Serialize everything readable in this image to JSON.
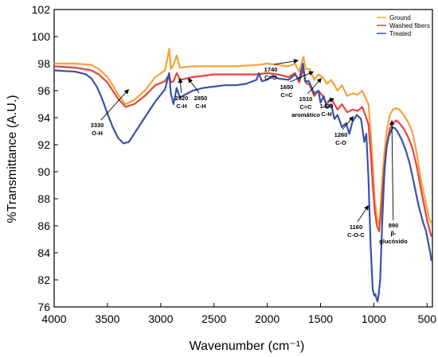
{
  "chart_data": {
    "type": "line",
    "xlabel": "Wavenumber (cm⁻¹)",
    "ylabel": "%Transmittance (A.U.)",
    "xlim": [
      4000,
      450
    ],
    "ylim": [
      76,
      102
    ],
    "x_ticks": [
      4000,
      3500,
      3000,
      2500,
      2000,
      1500,
      1000,
      500
    ],
    "y_ticks": [
      76,
      82,
      84,
      86,
      88,
      90,
      92,
      94,
      96,
      98,
      100,
      102
    ],
    "grid": false,
    "legend_position": "top-right",
    "series": [
      {
        "name": "Ground",
        "color": "#f4a23c",
        "points": [
          [
            4000,
            98.0
          ],
          [
            3800,
            98.0
          ],
          [
            3650,
            97.9
          ],
          [
            3580,
            97.6
          ],
          [
            3500,
            97.0
          ],
          [
            3450,
            96.4
          ],
          [
            3400,
            95.7
          ],
          [
            3330,
            95.0
          ],
          [
            3250,
            95.3
          ],
          [
            3150,
            96.0
          ],
          [
            3050,
            97.0
          ],
          [
            2960,
            97.5
          ],
          [
            2920,
            99.1
          ],
          [
            2905,
            97.6
          ],
          [
            2880,
            97.9
          ],
          [
            2850,
            98.6
          ],
          [
            2820,
            97.7
          ],
          [
            2700,
            97.8
          ],
          [
            2500,
            97.8
          ],
          [
            2300,
            97.8
          ],
          [
            2100,
            97.9
          ],
          [
            2000,
            98.0
          ],
          [
            1900,
            97.9
          ],
          [
            1800,
            97.8
          ],
          [
            1740,
            98.0
          ],
          [
            1700,
            97.4
          ],
          [
            1660,
            98.5
          ],
          [
            1640,
            97.6
          ],
          [
            1600,
            97.6
          ],
          [
            1560,
            96.8
          ],
          [
            1520,
            97.2
          ],
          [
            1480,
            97.0
          ],
          [
            1440,
            96.5
          ],
          [
            1400,
            96.8
          ],
          [
            1340,
            96.0
          ],
          [
            1300,
            96.4
          ],
          [
            1250,
            95.6
          ],
          [
            1200,
            95.8
          ],
          [
            1150,
            95.7
          ],
          [
            1110,
            96.0
          ],
          [
            1080,
            95.5
          ],
          [
            1050,
            95.0
          ],
          [
            1030,
            93.0
          ],
          [
            1010,
            90.5
          ],
          [
            990,
            87.8
          ],
          [
            970,
            86.5
          ],
          [
            950,
            86.1
          ],
          [
            935,
            87.5
          ],
          [
            920,
            89.5
          ],
          [
            900,
            91.5
          ],
          [
            880,
            93.0
          ],
          [
            850,
            94.2
          ],
          [
            820,
            94.6
          ],
          [
            790,
            94.7
          ],
          [
            760,
            94.6
          ],
          [
            720,
            94.2
          ],
          [
            680,
            93.7
          ],
          [
            640,
            93.0
          ],
          [
            600,
            91.5
          ],
          [
            560,
            89.5
          ],
          [
            520,
            88.0
          ],
          [
            500,
            87.2
          ],
          [
            480,
            86.5
          ],
          [
            460,
            86.2
          ]
        ]
      },
      {
        "name": "Washed fibers",
        "color": "#e6453a",
        "points": [
          [
            4000,
            97.8
          ],
          [
            3800,
            97.7
          ],
          [
            3650,
            97.5
          ],
          [
            3580,
            97.2
          ],
          [
            3500,
            96.6
          ],
          [
            3450,
            96.0
          ],
          [
            3400,
            95.4
          ],
          [
            3330,
            94.8
          ],
          [
            3250,
            95.0
          ],
          [
            3150,
            95.6
          ],
          [
            3050,
            96.4
          ],
          [
            2960,
            96.7
          ],
          [
            2920,
            97.2
          ],
          [
            2905,
            96.6
          ],
          [
            2880,
            96.7
          ],
          [
            2850,
            97.3
          ],
          [
            2820,
            96.8
          ],
          [
            2700,
            97.0
          ],
          [
            2500,
            97.2
          ],
          [
            2300,
            97.2
          ],
          [
            2100,
            97.2
          ],
          [
            2000,
            97.3
          ],
          [
            1900,
            97.2
          ],
          [
            1800,
            97.0
          ],
          [
            1740,
            97.3
          ],
          [
            1700,
            96.6
          ],
          [
            1660,
            97.6
          ],
          [
            1640,
            96.6
          ],
          [
            1600,
            96.4
          ],
          [
            1560,
            95.6
          ],
          [
            1520,
            96.0
          ],
          [
            1480,
            95.6
          ],
          [
            1440,
            95.0
          ],
          [
            1400,
            95.4
          ],
          [
            1340,
            94.6
          ],
          [
            1300,
            95.0
          ],
          [
            1250,
            94.4
          ],
          [
            1200,
            94.6
          ],
          [
            1150,
            94.5
          ],
          [
            1110,
            94.8
          ],
          [
            1080,
            94.2
          ],
          [
            1050,
            93.5
          ],
          [
            1030,
            91.5
          ],
          [
            1010,
            89.0
          ],
          [
            990,
            87.0
          ],
          [
            970,
            86.0
          ],
          [
            950,
            85.6
          ],
          [
            935,
            86.8
          ],
          [
            920,
            88.5
          ],
          [
            900,
            90.5
          ],
          [
            880,
            92.0
          ],
          [
            850,
            93.2
          ],
          [
            820,
            93.6
          ],
          [
            790,
            93.8
          ],
          [
            760,
            93.6
          ],
          [
            720,
            93.2
          ],
          [
            680,
            92.6
          ],
          [
            640,
            91.8
          ],
          [
            600,
            90.5
          ],
          [
            560,
            88.8
          ],
          [
            520,
            87.2
          ],
          [
            500,
            86.4
          ],
          [
            480,
            85.8
          ],
          [
            460,
            85.2
          ]
        ]
      },
      {
        "name": "Treated",
        "color": "#3a52a8",
        "points": [
          [
            4000,
            97.5
          ],
          [
            3800,
            97.4
          ],
          [
            3700,
            97.2
          ],
          [
            3650,
            96.9
          ],
          [
            3600,
            96.3
          ],
          [
            3550,
            95.4
          ],
          [
            3500,
            94.3
          ],
          [
            3450,
            93.3
          ],
          [
            3400,
            92.5
          ],
          [
            3350,
            92.1
          ],
          [
            3300,
            92.2
          ],
          [
            3250,
            92.8
          ],
          [
            3150,
            94.0
          ],
          [
            3050,
            95.2
          ],
          [
            2960,
            96.1
          ],
          [
            2920,
            97.3
          ],
          [
            2905,
            95.8
          ],
          [
            2880,
            95.0
          ],
          [
            2850,
            96.2
          ],
          [
            2820,
            95.5
          ],
          [
            2700,
            96.0
          ],
          [
            2600,
            96.2
          ],
          [
            2500,
            96.3
          ],
          [
            2400,
            96.4
          ],
          [
            2300,
            96.4
          ],
          [
            2200,
            96.5
          ],
          [
            2100,
            96.8
          ],
          [
            2080,
            97.3
          ],
          [
            2050,
            96.7
          ],
          [
            2000,
            96.8
          ],
          [
            1950,
            97.1
          ],
          [
            1900,
            96.9
          ],
          [
            1800,
            96.8
          ],
          [
            1740,
            97.2
          ],
          [
            1700,
            96.8
          ],
          [
            1665,
            98.0
          ],
          [
            1645,
            96.7
          ],
          [
            1610,
            96.7
          ],
          [
            1560,
            95.8
          ],
          [
            1520,
            96.0
          ],
          [
            1500,
            95.1
          ],
          [
            1470,
            95.6
          ],
          [
            1440,
            94.7
          ],
          [
            1400,
            95.0
          ],
          [
            1370,
            93.9
          ],
          [
            1340,
            94.2
          ],
          [
            1300,
            93.3
          ],
          [
            1260,
            93.6
          ],
          [
            1230,
            92.8
          ],
          [
            1200,
            93.7
          ],
          [
            1160,
            94.2
          ],
          [
            1120,
            93.9
          ],
          [
            1090,
            92.2
          ],
          [
            1070,
            92.8
          ],
          [
            1050,
            89.5
          ],
          [
            1030,
            84.5
          ],
          [
            1010,
            79.8
          ],
          [
            995,
            78.5
          ],
          [
            985,
            78.8
          ],
          [
            975,
            77.8
          ],
          [
            965,
            77.2
          ],
          [
            955,
            78.6
          ],
          [
            940,
            82.0
          ],
          [
            920,
            86.5
          ],
          [
            900,
            90.0
          ],
          [
            880,
            91.8
          ],
          [
            860,
            92.6
          ],
          [
            840,
            93.0
          ],
          [
            820,
            93.3
          ],
          [
            800,
            93.2
          ],
          [
            780,
            93.0
          ],
          [
            740,
            92.4
          ],
          [
            700,
            91.6
          ],
          [
            660,
            90.5
          ],
          [
            620,
            89.0
          ],
          [
            580,
            87.5
          ],
          [
            540,
            86.3
          ],
          [
            510,
            85.6
          ],
          [
            490,
            84.8
          ],
          [
            470,
            84.0
          ],
          [
            460,
            83.4
          ]
        ]
      }
    ],
    "annotations": [
      {
        "lines": [
          "3330",
          "O-H"
        ]
      },
      {
        "lines": [
          "2920",
          "C-H"
        ]
      },
      {
        "lines": [
          "2850",
          "C-H"
        ]
      },
      {
        "lines": [
          "1740",
          "C=O"
        ]
      },
      {
        "lines": [
          "1650",
          "C=C"
        ]
      },
      {
        "lines": [
          "1510",
          "C=C",
          "aromático"
        ]
      },
      {
        "lines": [
          "1430",
          "C-H"
        ]
      },
      {
        "lines": [
          "1260",
          "C-O"
        ]
      },
      {
        "lines": [
          "1160",
          "C-O-C"
        ]
      },
      {
        "lines": [
          "890",
          "β-",
          "glucósido"
        ]
      }
    ]
  }
}
